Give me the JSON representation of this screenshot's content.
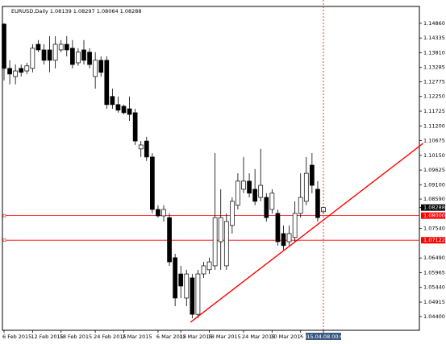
{
  "chart_data": {
    "type": "candlestick",
    "title": "EURUSD,Daily  1.08139 1.08297 1.08064 1.08288",
    "categories": [
      "6 Feb 2015",
      null,
      null,
      null,
      null,
      "12 Feb 2015",
      null,
      null,
      null,
      null,
      "18 Feb 2015",
      null,
      null,
      null,
      null,
      null,
      "24 Feb 2015",
      null,
      null,
      null,
      null,
      "2 Mar 2015",
      null,
      null,
      null,
      null,
      null,
      "6 Mar 2015",
      null,
      null,
      null,
      "12 Mar 2015",
      null,
      null,
      null,
      null,
      "18 Mar 2015",
      null,
      null,
      null,
      null,
      null,
      "24 Mar 2015",
      null,
      null,
      null,
      null,
      "30 Mar 2015",
      null,
      null,
      null,
      null,
      "3",
      null,
      null,
      null,
      "2015.04.08 00:00"
    ],
    "open": [
      1.1483,
      1.1325,
      1.1296,
      1.1325,
      1.1316,
      1.1325,
      1.1411,
      1.1391,
      1.1391,
      1.1354,
      1.1391,
      1.1411,
      1.1397,
      1.1345,
      1.1391,
      1.1383,
      1.1296,
      1.1354,
      1.1354,
      1.1225,
      1.1196,
      1.119,
      1.1181,
      1.1167,
      1.1038,
      1.1066,
      1.1009,
      1.0822,
      1.0799,
      1.0793,
      1.065,
      1.0592,
      1.0506,
      1.0578,
      1.0448,
      1.0592,
      1.0607,
      1.0621,
      1.0707,
      1.0621,
      1.0765,
      1.0837,
      1.0894,
      1.0923,
      1.0894,
      1.0865,
      1.0865,
      1.0822,
      1.0808,
      1.0736,
      1.0707,
      1.0722,
      1.0808,
      1.0851,
      1.098,
      1.0894,
      1.08139
    ],
    "high": [
      1.1486,
      1.1354,
      1.1339,
      1.1339,
      1.1345,
      1.1411,
      1.1426,
      1.1411,
      1.144,
      1.144,
      1.1426,
      1.144,
      1.1426,
      1.1397,
      1.1426,
      1.1397,
      1.1383,
      1.1368,
      1.1368,
      1.1253,
      1.1225,
      1.1196,
      1.1225,
      1.1181,
      1.1066,
      1.1081,
      1.1023,
      1.0837,
      1.0837,
      1.0808,
      1.0664,
      1.0621,
      1.0607,
      1.0592,
      1.0607,
      1.0635,
      1.065,
      1.1023,
      1.0894,
      1.0808,
      1.0865,
      1.0951,
      1.1009,
      1.0951,
      1.0966,
      1.1038,
      1.088,
      1.0894,
      1.0822,
      1.0765,
      1.0765,
      1.0851,
      1.0951,
      1.1009,
      1.1023,
      1.0923,
      1.08297
    ],
    "low": [
      1.1282,
      1.1268,
      1.1268,
      1.1296,
      1.1305,
      1.1311,
      1.1383,
      1.1339,
      1.1311,
      1.1325,
      1.1383,
      1.1368,
      1.1325,
      1.1334,
      1.1339,
      1.1325,
      1.1253,
      1.1296,
      1.1181,
      1.1181,
      1.1167,
      1.1161,
      1.1138,
      1.1052,
      1.1009,
      1.0995,
      1.0808,
      1.0793,
      1.0779,
      1.0621,
      1.0477,
      1.0506,
      1.0477,
      1.0434,
      1.0434,
      1.0578,
      1.0592,
      1.0607,
      1.0607,
      1.0607,
      1.0736,
      1.0822,
      1.088,
      1.0865,
      1.0837,
      1.0851,
      1.0779,
      1.0808,
      1.0693,
      1.0678,
      1.0693,
      1.0707,
      1.0793,
      1.0837,
      1.088,
      1.0779,
      1.08064
    ],
    "close": [
      1.1325,
      1.1305,
      1.1316,
      1.1311,
      1.1334,
      1.1397,
      1.1391,
      1.1354,
      1.1354,
      1.1411,
      1.1411,
      1.1391,
      1.1339,
      1.1383,
      1.1354,
      1.1339,
      1.1354,
      1.1311,
      1.1196,
      1.1196,
      1.1176,
      1.1167,
      1.1161,
      1.1066,
      1.1052,
      1.1009,
      1.0822,
      1.0799,
      1.0822,
      1.0635,
      1.0506,
      1.0549,
      1.0592,
      1.0448,
      1.0592,
      1.0621,
      1.0635,
      1.0793,
      1.0793,
      1.0779,
      1.0851,
      1.0923,
      1.0923,
      1.088,
      1.0851,
      1.0908,
      1.0793,
      1.088,
      1.0707,
      1.0693,
      1.0736,
      1.0808,
      1.0865,
      1.0951,
      1.0908,
      1.0793,
      1.08288
    ],
    "up_color": "#ffffff",
    "down_color": "#000000",
    "outline_color": "#000000",
    "ylim": [
      1.0391,
      1.1546
    ],
    "yticks": [
      {
        "value": 1.1486,
        "label": "1.14860"
      },
      {
        "value": 1.14335,
        "label": "1.14335"
      },
      {
        "value": 1.1381,
        "label": "1.13810"
      },
      {
        "value": 1.13285,
        "label": "1.13285"
      },
      {
        "value": 1.12775,
        "label": "1.12775"
      },
      {
        "value": 1.1225,
        "label": "1.12250"
      },
      {
        "value": 1.11725,
        "label": "1.11725"
      },
      {
        "value": 1.112,
        "label": "1.11200"
      },
      {
        "value": 1.10675,
        "label": "1.10675"
      },
      {
        "value": 1.1015,
        "label": "1.10150"
      },
      {
        "value": 1.09625,
        "label": "1.09625"
      },
      {
        "value": 1.091,
        "label": "1.09100"
      },
      {
        "value": 1.0859,
        "label": "1.08590"
      },
      {
        "value": 1.0754,
        "label": "1.07540"
      },
      {
        "value": 1.0649,
        "label": "1.06490"
      },
      {
        "value": 1.05965,
        "label": "1.05965"
      },
      {
        "value": 1.0544,
        "label": "1.05440"
      },
      {
        "value": 1.04915,
        "label": "1.04915"
      },
      {
        "value": 1.044,
        "label": "1.04400"
      }
    ],
    "grid": false,
    "hlines": [
      {
        "value": 1.08,
        "label": "1.08000",
        "color": "#ff0000"
      },
      {
        "value": 1.07122,
        "label": "1.07122",
        "color": "#ff0000"
      }
    ],
    "last_price": {
      "value": 1.08288,
      "label": "1.08288"
    },
    "trendline": {
      "x": [
        32.7,
        73.5
      ],
      "y": [
        1.042,
        1.1058
      ],
      "color": "#ff0000"
    }
  }
}
